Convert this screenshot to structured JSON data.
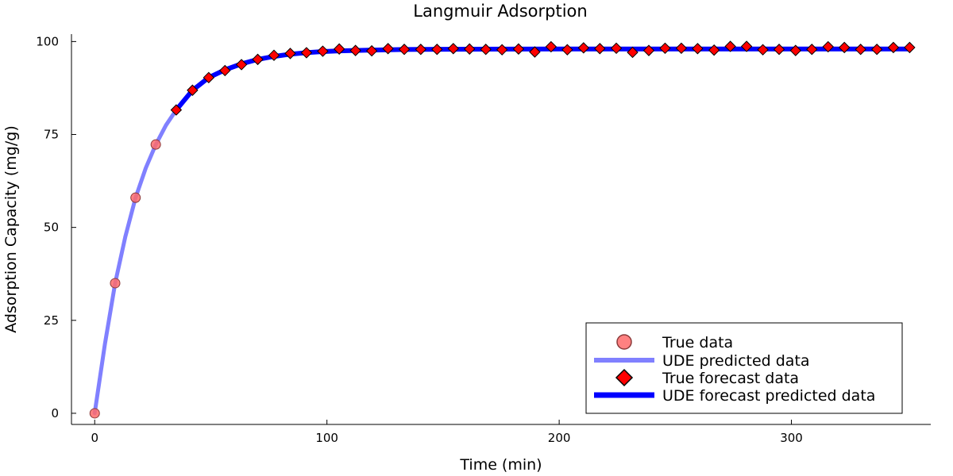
{
  "chart_data": {
    "type": "line",
    "title": "Langmuir Adsorption",
    "xlabel": "Time (min)",
    "ylabel": "Adsorption Capacity (mg/g)",
    "xlim": [
      -10,
      360
    ],
    "ylim": [
      -3,
      102
    ],
    "xticks": [
      0,
      100,
      200,
      300
    ],
    "yticks": [
      0,
      25,
      50,
      75,
      100
    ],
    "grid": false,
    "legend_position": "bottom-right",
    "colors": {
      "true_data_fill": "#ff6b6b",
      "true_data_stroke": "#8b3a3a",
      "ude_predicted": "#8080ff",
      "true_forecast_fill": "#ff0000",
      "true_forecast_stroke": "#000000",
      "ude_forecast": "#0000ff"
    },
    "series": [
      {
        "name": "True data",
        "kind": "scatter-circle",
        "x": [
          0,
          8.8,
          17.6,
          26.3
        ],
        "y": [
          0,
          35.0,
          58.0,
          72.3
        ]
      },
      {
        "name": "UDE predicted data",
        "kind": "line",
        "x": [
          0,
          4.4,
          8.8,
          13.2,
          17.6,
          22,
          26.3,
          30.7,
          35.1
        ],
        "y": [
          0,
          18.6,
          35.0,
          47.5,
          58.0,
          66.0,
          72.3,
          77.5,
          81.6
        ]
      },
      {
        "name": "True forecast data",
        "kind": "scatter-diamond",
        "x": [
          35.1,
          42.1,
          49.1,
          56.1,
          63.2,
          70.2,
          77.2,
          84.2,
          91.2,
          98.2,
          105.3,
          112.3,
          119.3,
          126.3,
          133.3,
          140.4,
          147.4,
          154.4,
          161.4,
          168.4,
          175.4,
          182.5,
          189.5,
          196.5,
          203.5,
          210.5,
          217.5,
          224.6,
          231.6,
          238.6,
          245.6,
          252.6,
          259.6,
          266.7,
          273.7,
          280.7,
          287.7,
          294.7,
          301.8,
          308.8,
          315.8,
          322.8,
          329.8,
          336.8,
          343.9,
          350.9
        ],
        "y": [
          81.6,
          86.9,
          90.3,
          92.2,
          93.8,
          95.2,
          96.3,
          96.8,
          97.0,
          97.4,
          98.0,
          97.6,
          97.5,
          98.1,
          97.9,
          97.9,
          97.9,
          98.1,
          98.0,
          97.9,
          97.8,
          98.0,
          97.2,
          98.6,
          97.8,
          98.3,
          98.1,
          98.2,
          97.1,
          97.6,
          98.2,
          98.2,
          98.1,
          97.7,
          98.7,
          98.7,
          97.8,
          97.9,
          97.6,
          97.9,
          98.6,
          98.4,
          97.9,
          97.9,
          98.4,
          98.4
        ]
      },
      {
        "name": "UDE forecast predicted data",
        "kind": "line-bold",
        "x": [
          35.1,
          42.1,
          49.1,
          56.1,
          63.2,
          70.2,
          77.2,
          84.2,
          91.2,
          98.2,
          105.3,
          112.3,
          119.3,
          126.3,
          133.3,
          140.4,
          160,
          200,
          250,
          300,
          350.9
        ],
        "y": [
          81.6,
          86.9,
          90.3,
          92.4,
          94.0,
          95.2,
          96.0,
          96.6,
          97.0,
          97.3,
          97.5,
          97.6,
          97.7,
          97.8,
          97.85,
          97.9,
          97.95,
          98.0,
          98.0,
          98.0,
          98.0
        ]
      }
    ]
  }
}
